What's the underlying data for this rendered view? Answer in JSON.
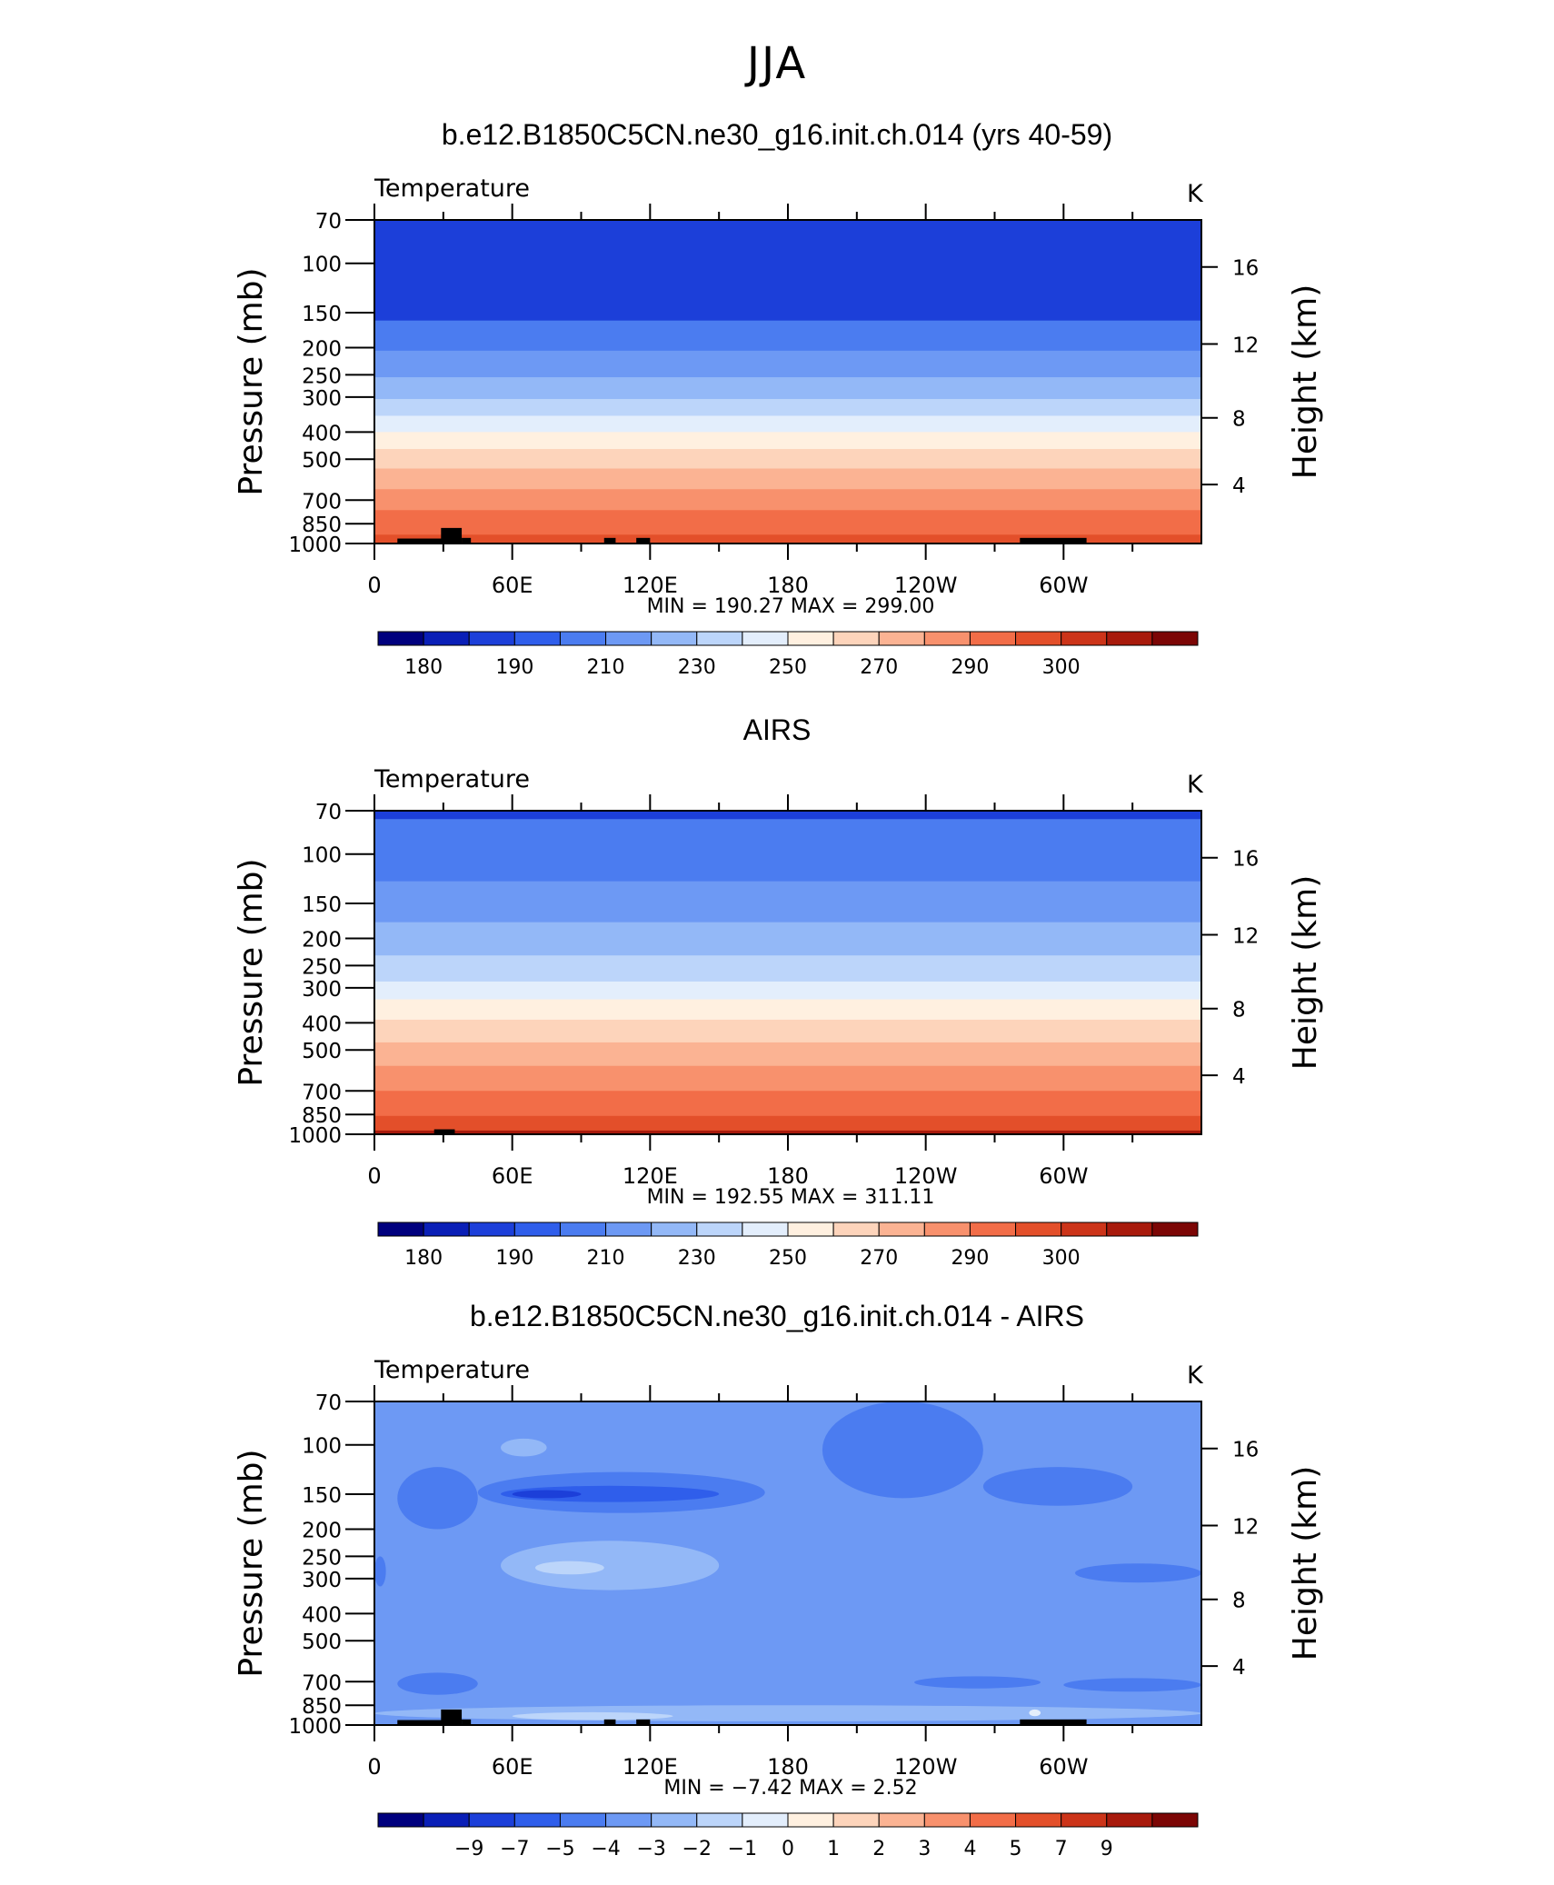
{
  "page": {
    "title": "JJA"
  },
  "colors": {
    "temperature_scale": [
      "#00007e",
      "#0a1fb7",
      "#1c3fd9",
      "#2f5eeb",
      "#4b7cf0",
      "#6d99f4",
      "#93b8f7",
      "#bcd5fa",
      "#e3eefc",
      "#fff0e0",
      "#fdd4bb",
      "#fbb393",
      "#f8916d",
      "#f26d48",
      "#e34f2a",
      "#cc3419",
      "#a81a0c",
      "#7c0605"
    ],
    "difference_scale": [
      "#00007e",
      "#0a1fb7",
      "#1c3fd9",
      "#2f5eeb",
      "#4b7cf0",
      "#6d99f4",
      "#93b8f7",
      "#bcd5fa",
      "#e3eefc",
      "#fff0e0",
      "#fdd4bb",
      "#fbb393",
      "#f8916d",
      "#f26d48",
      "#e34f2a",
      "#cc3419",
      "#a81a0c",
      "#7c0605"
    ],
    "topography": "#000000"
  },
  "panels": [
    {
      "title": "b.e12.B1850C5CN.ne30_g16.init.ch.014 (yrs 40-59)",
      "variable": "Temperature",
      "units": "K",
      "left_axis_label": "Pressure  (mb)",
      "right_axis_label": "Height  (km)",
      "minmax": "MIN  =   190.27    MAX  =   299.00"
    },
    {
      "title": "AIRS",
      "variable": "Temperature",
      "units": "K",
      "left_axis_label": "Pressure  (mb)",
      "right_axis_label": "Height  (km)",
      "minmax": "MIN  =   192.55    MAX  =   311.11"
    },
    {
      "title": "b.e12.B1850C5CN.ne30_g16.init.ch.014 - AIRS",
      "variable": "Temperature",
      "units": "K",
      "left_axis_label": "Pressure  (mb)",
      "right_axis_label": "Height  (km)",
      "minmax": "MIN  =     −7.42    MAX  =        2.52"
    }
  ],
  "chart_data": [
    {
      "type": "heatmap",
      "title": "b.e12.B1850C5CN.ne30_g16.init.ch.014 (yrs 40-59)",
      "subtitle": "Temperature",
      "units": "K",
      "xlabel": "",
      "ylabel": "Pressure  (mb)",
      "ylabel_right": "Height  (km)",
      "x_ticks": [
        "0",
        "60E",
        "120E",
        "180",
        "120W",
        "60W"
      ],
      "x_range": [
        0,
        360
      ],
      "y_ticks": [
        "70",
        "100",
        "150",
        "200",
        "250",
        "300",
        "400",
        "500",
        "700",
        "850",
        "1000"
      ],
      "y_range": [
        1000,
        70
      ],
      "y_scale": "log",
      "right_ticks": [
        "16",
        "12",
        "8",
        "4"
      ],
      "colorbar_labels": [
        "180",
        "190",
        "210",
        "230",
        "250",
        "270",
        "290",
        "300"
      ],
      "min": 190.27,
      "max": 299.0,
      "band_bottoms": [
        {
          "p": 160,
          "v": 190
        },
        {
          "p": 205,
          "v": 200
        },
        {
          "p": 255,
          "v": 210
        },
        {
          "p": 305,
          "v": 220
        },
        {
          "p": 350,
          "v": 230
        },
        {
          "p": 400,
          "v": 240
        },
        {
          "p": 460,
          "v": 250
        },
        {
          "p": 540,
          "v": 260
        },
        {
          "p": 640,
          "v": 270
        },
        {
          "p": 760,
          "v": 280
        },
        {
          "p": 930,
          "v": 290
        }
      ],
      "band_top_value": 180
    },
    {
      "type": "heatmap",
      "title": "AIRS",
      "subtitle": "Temperature",
      "units": "K",
      "xlabel": "",
      "ylabel": "Pressure  (mb)",
      "ylabel_right": "Height  (km)",
      "x_ticks": [
        "0",
        "60E",
        "120E",
        "180",
        "120W",
        "60W"
      ],
      "x_range": [
        0,
        360
      ],
      "y_ticks": [
        "70",
        "100",
        "150",
        "200",
        "250",
        "300",
        "400",
        "500",
        "700",
        "850",
        "1000"
      ],
      "y_range": [
        1000,
        70
      ],
      "y_scale": "log",
      "right_ticks": [
        "16",
        "12",
        "8",
        "4"
      ],
      "colorbar_labels": [
        "180",
        "190",
        "210",
        "230",
        "250",
        "270",
        "290",
        "300"
      ],
      "min": 192.55,
      "max": 311.11,
      "band_bottoms": [
        {
          "p": 75,
          "v": 190
        },
        {
          "p": 125,
          "v": 200
        },
        {
          "p": 175,
          "v": 210
        },
        {
          "p": 230,
          "v": 220
        },
        {
          "p": 285,
          "v": 230
        },
        {
          "p": 330,
          "v": 240
        },
        {
          "p": 390,
          "v": 250
        },
        {
          "p": 470,
          "v": 260
        },
        {
          "p": 570,
          "v": 270
        },
        {
          "p": 700,
          "v": 280
        },
        {
          "p": 860,
          "v": 290
        },
        {
          "p": 970,
          "v": 300
        }
      ],
      "band_top_value": 180
    },
    {
      "type": "heatmap",
      "title": "b.e12.B1850C5CN.ne30_g16.init.ch.014 - AIRS",
      "subtitle": "Temperature",
      "units": "K",
      "xlabel": "",
      "ylabel": "Pressure  (mb)",
      "ylabel_right": "Height  (km)",
      "x_ticks": [
        "0",
        "60E",
        "120E",
        "180",
        "120W",
        "60W"
      ],
      "x_range": [
        0,
        360
      ],
      "y_ticks": [
        "70",
        "100",
        "150",
        "200",
        "250",
        "300",
        "400",
        "500",
        "700",
        "850",
        "1000"
      ],
      "y_range": [
        1000,
        70
      ],
      "y_scale": "log",
      "right_ticks": [
        "16",
        "12",
        "8",
        "4"
      ],
      "colorbar_labels": [
        "−9",
        "−7",
        "−5",
        "−4",
        "−3",
        "−2",
        "−1",
        "0",
        "1",
        "2",
        "3",
        "4",
        "5",
        "7",
        "9"
      ],
      "min": -7.42,
      "max": 2.52,
      "background_value": -2.5,
      "regions": [
        {
          "value": -3.5,
          "lon": [
            10,
            45
          ],
          "p": [
            120,
            200
          ]
        },
        {
          "value": -3.5,
          "lon": [
            45,
            170
          ],
          "p": [
            125,
            175
          ]
        },
        {
          "value": -4.5,
          "lon": [
            55,
            150
          ],
          "p": [
            140,
            160
          ]
        },
        {
          "value": -5.5,
          "lon": [
            60,
            90
          ],
          "p": [
            145,
            155
          ]
        },
        {
          "value": -3.5,
          "lon": [
            195,
            265
          ],
          "p": [
            70,
            155
          ]
        },
        {
          "value": -3.5,
          "lon": [
            265,
            330
          ],
          "p": [
            120,
            165
          ]
        },
        {
          "value": -1.5,
          "lon": [
            55,
            150
          ],
          "p": [
            220,
            330
          ]
        },
        {
          "value": -0.5,
          "lon": [
            70,
            100
          ],
          "p": [
            260,
            290
          ]
        },
        {
          "value": -1.5,
          "lon": [
            55,
            75
          ],
          "p": [
            95,
            110
          ]
        },
        {
          "value": -3.5,
          "lon": [
            305,
            360
          ],
          "p": [
            265,
            310
          ]
        },
        {
          "value": -3.5,
          "lon": [
            0,
            5
          ],
          "p": [
            250,
            320
          ]
        },
        {
          "value": -3.5,
          "lon": [
            10,
            45
          ],
          "p": [
            650,
            780
          ]
        },
        {
          "value": -3.5,
          "lon": [
            235,
            290
          ],
          "p": [
            670,
            740
          ]
        },
        {
          "value": -3.5,
          "lon": [
            300,
            360
          ],
          "p": [
            680,
            760
          ]
        },
        {
          "value": -1.5,
          "lon": [
            0,
            360
          ],
          "p": [
            850,
            970
          ]
        },
        {
          "value": -0.5,
          "lon": [
            60,
            130
          ],
          "p": [
            900,
            960
          ]
        },
        {
          "value": 0.5,
          "lon": [
            285,
            290
          ],
          "p": [
            880,
            930
          ]
        }
      ]
    }
  ],
  "topography": [
    {
      "lon": [
        10,
        32
      ],
      "p": [
        960,
        1000
      ]
    },
    {
      "lon": [
        29,
        38
      ],
      "p": [
        880,
        1000
      ]
    },
    {
      "lon": [
        38,
        42
      ],
      "p": [
        955,
        1000
      ]
    },
    {
      "lon": [
        100,
        105
      ],
      "p": [
        955,
        1000
      ]
    },
    {
      "lon": [
        114,
        120
      ],
      "p": [
        955,
        1000
      ]
    },
    {
      "lon": [
        281,
        310
      ],
      "p": [
        955,
        1000
      ]
    }
  ],
  "topography_airs": [
    {
      "lon": [
        26,
        35
      ],
      "p": [
        960,
        1000
      ]
    }
  ]
}
